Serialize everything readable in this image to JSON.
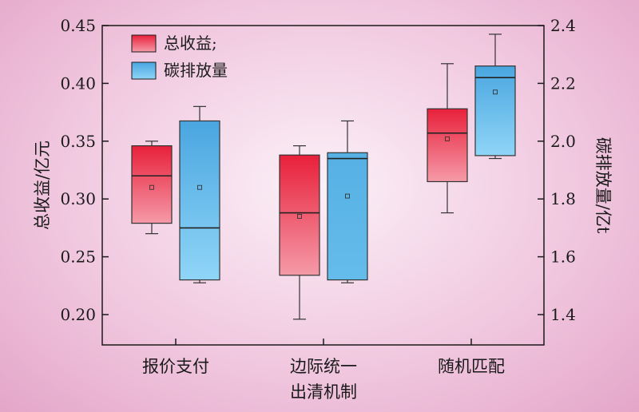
{
  "chart_data": {
    "type": "box",
    "categories": [
      "报价支付",
      "边际统一\n出清机制",
      "随机匹配"
    ],
    "y_left": {
      "label": "总收益/亿元",
      "ylim": [
        0.175,
        0.45
      ],
      "ticks": [
        "0.20",
        "0.25",
        "0.30",
        "0.35",
        "0.40",
        "0.45"
      ],
      "tick_values": [
        0.2,
        0.25,
        0.3,
        0.35,
        0.4,
        0.45
      ]
    },
    "y_right": {
      "label": "碳排放量/亿t",
      "ylim": [
        1.3,
        2.4
      ],
      "ticks": [
        "1.4",
        "1.6",
        "1.8",
        "2.0",
        "2.2",
        "2.4"
      ],
      "tick_values": [
        1.4,
        1.6,
        1.8,
        2.0,
        2.2,
        2.4
      ]
    },
    "legend": {
      "placement": "top-left",
      "entries": [
        "总收益;",
        "碳排放量"
      ]
    },
    "colors": {
      "revenue_top": "#e8203a",
      "revenue_bottom": "#f59aa8",
      "carbon_top": "#4aa6e0",
      "carbon_bottom": "#8fd5f7",
      "carbon_mid": "#5bb4e6"
    },
    "series": [
      {
        "name": "总收益;",
        "axis": "left",
        "boxes": [
          {
            "min": 0.27,
            "q1": 0.279,
            "median": 0.32,
            "q3": 0.346,
            "max": 0.35,
            "mean": 0.31
          },
          {
            "min": 0.196,
            "q1": 0.234,
            "median": 0.288,
            "q3": 0.338,
            "max": 0.346,
            "mean": 0.285
          },
          {
            "min": 0.288,
            "q1": 0.315,
            "median": 0.357,
            "q3": 0.378,
            "max": 0.417,
            "mean": 0.352
          }
        ]
      },
      {
        "name": "碳排放量",
        "axis": "right",
        "boxes": [
          {
            "min": 1.51,
            "q1": 1.52,
            "median": 1.7,
            "q3": 2.07,
            "max": 2.12,
            "mean": 1.84
          },
          {
            "min": 1.51,
            "q1": 1.52,
            "median": 1.94,
            "q3": 1.96,
            "max": 2.07,
            "mean": 1.81
          },
          {
            "min": 1.94,
            "q1": 1.95,
            "median": 2.22,
            "q3": 2.26,
            "max": 2.37,
            "mean": 2.17
          }
        ]
      }
    ]
  }
}
